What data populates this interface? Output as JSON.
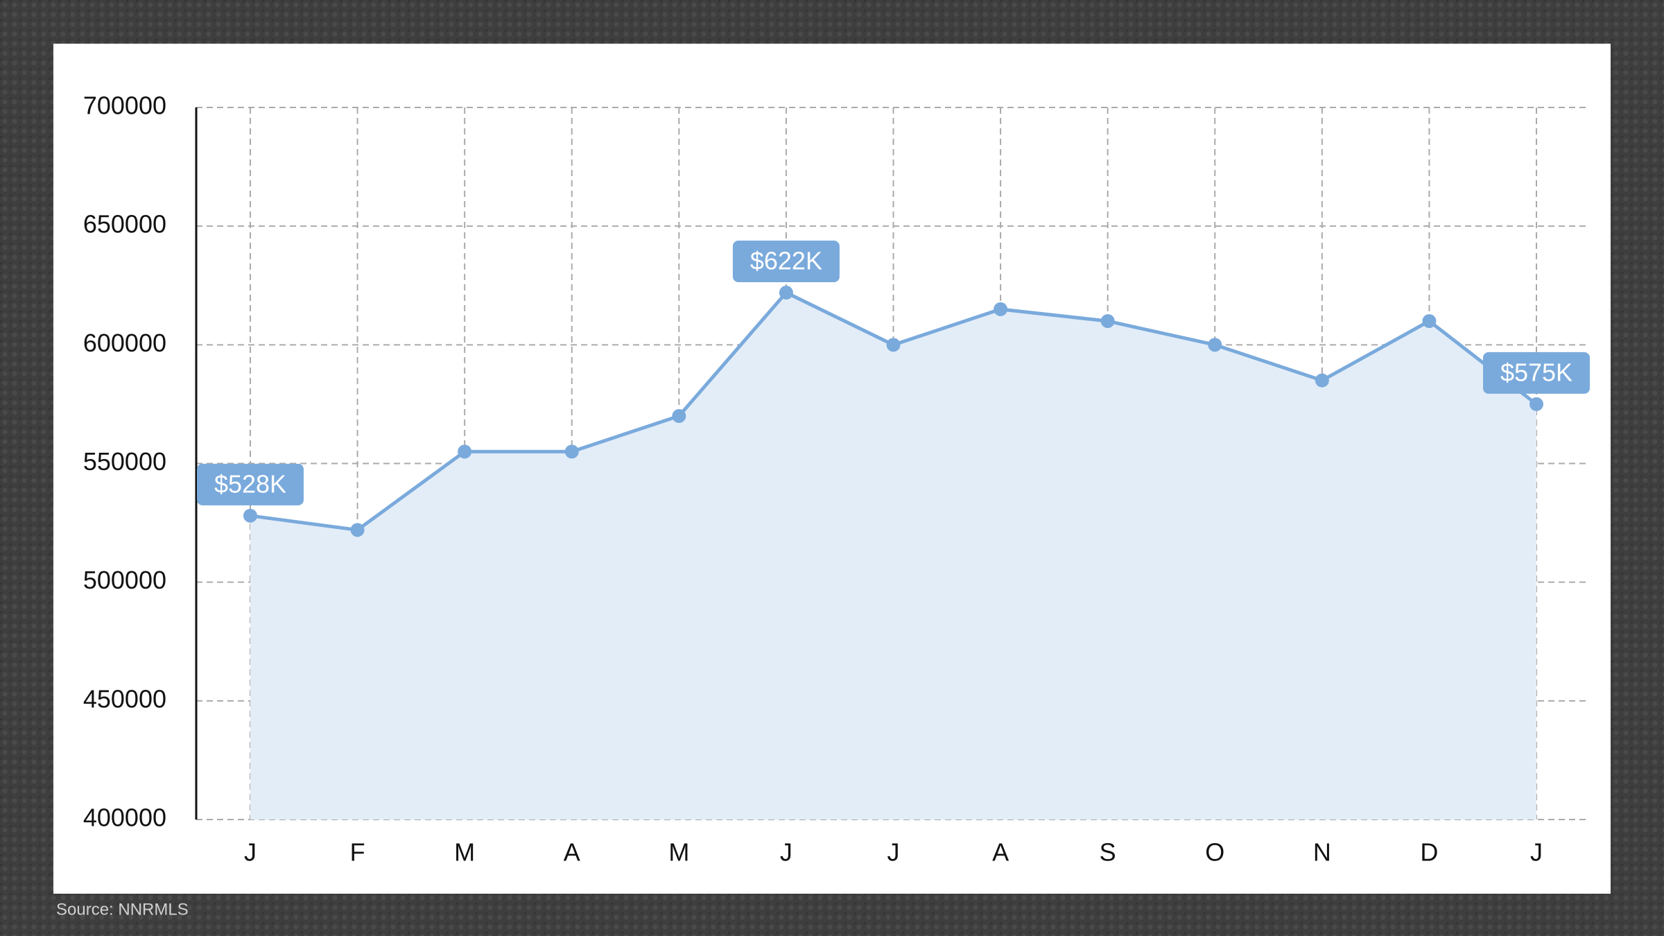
{
  "chart_data": {
    "type": "line",
    "categories": [
      "J",
      "F",
      "M",
      "A",
      "M",
      "J",
      "J",
      "A",
      "S",
      "O",
      "N",
      "D",
      "J"
    ],
    "values": [
      528000,
      522000,
      555000,
      555000,
      570000,
      622000,
      600000,
      615000,
      610000,
      600000,
      585000,
      610000,
      575000
    ],
    "value_labels": [
      "$528K",
      null,
      null,
      null,
      null,
      "$622K",
      null,
      null,
      null,
      null,
      null,
      null,
      "$575K"
    ],
    "color": "#7aaadc",
    "fill_color": "#e3edf8",
    "ylim": [
      400000,
      700000
    ],
    "yticks": [
      400000,
      450000,
      500000,
      550000,
      600000,
      650000,
      700000
    ],
    "grid": true,
    "source": "Source: NNRMLS"
  }
}
